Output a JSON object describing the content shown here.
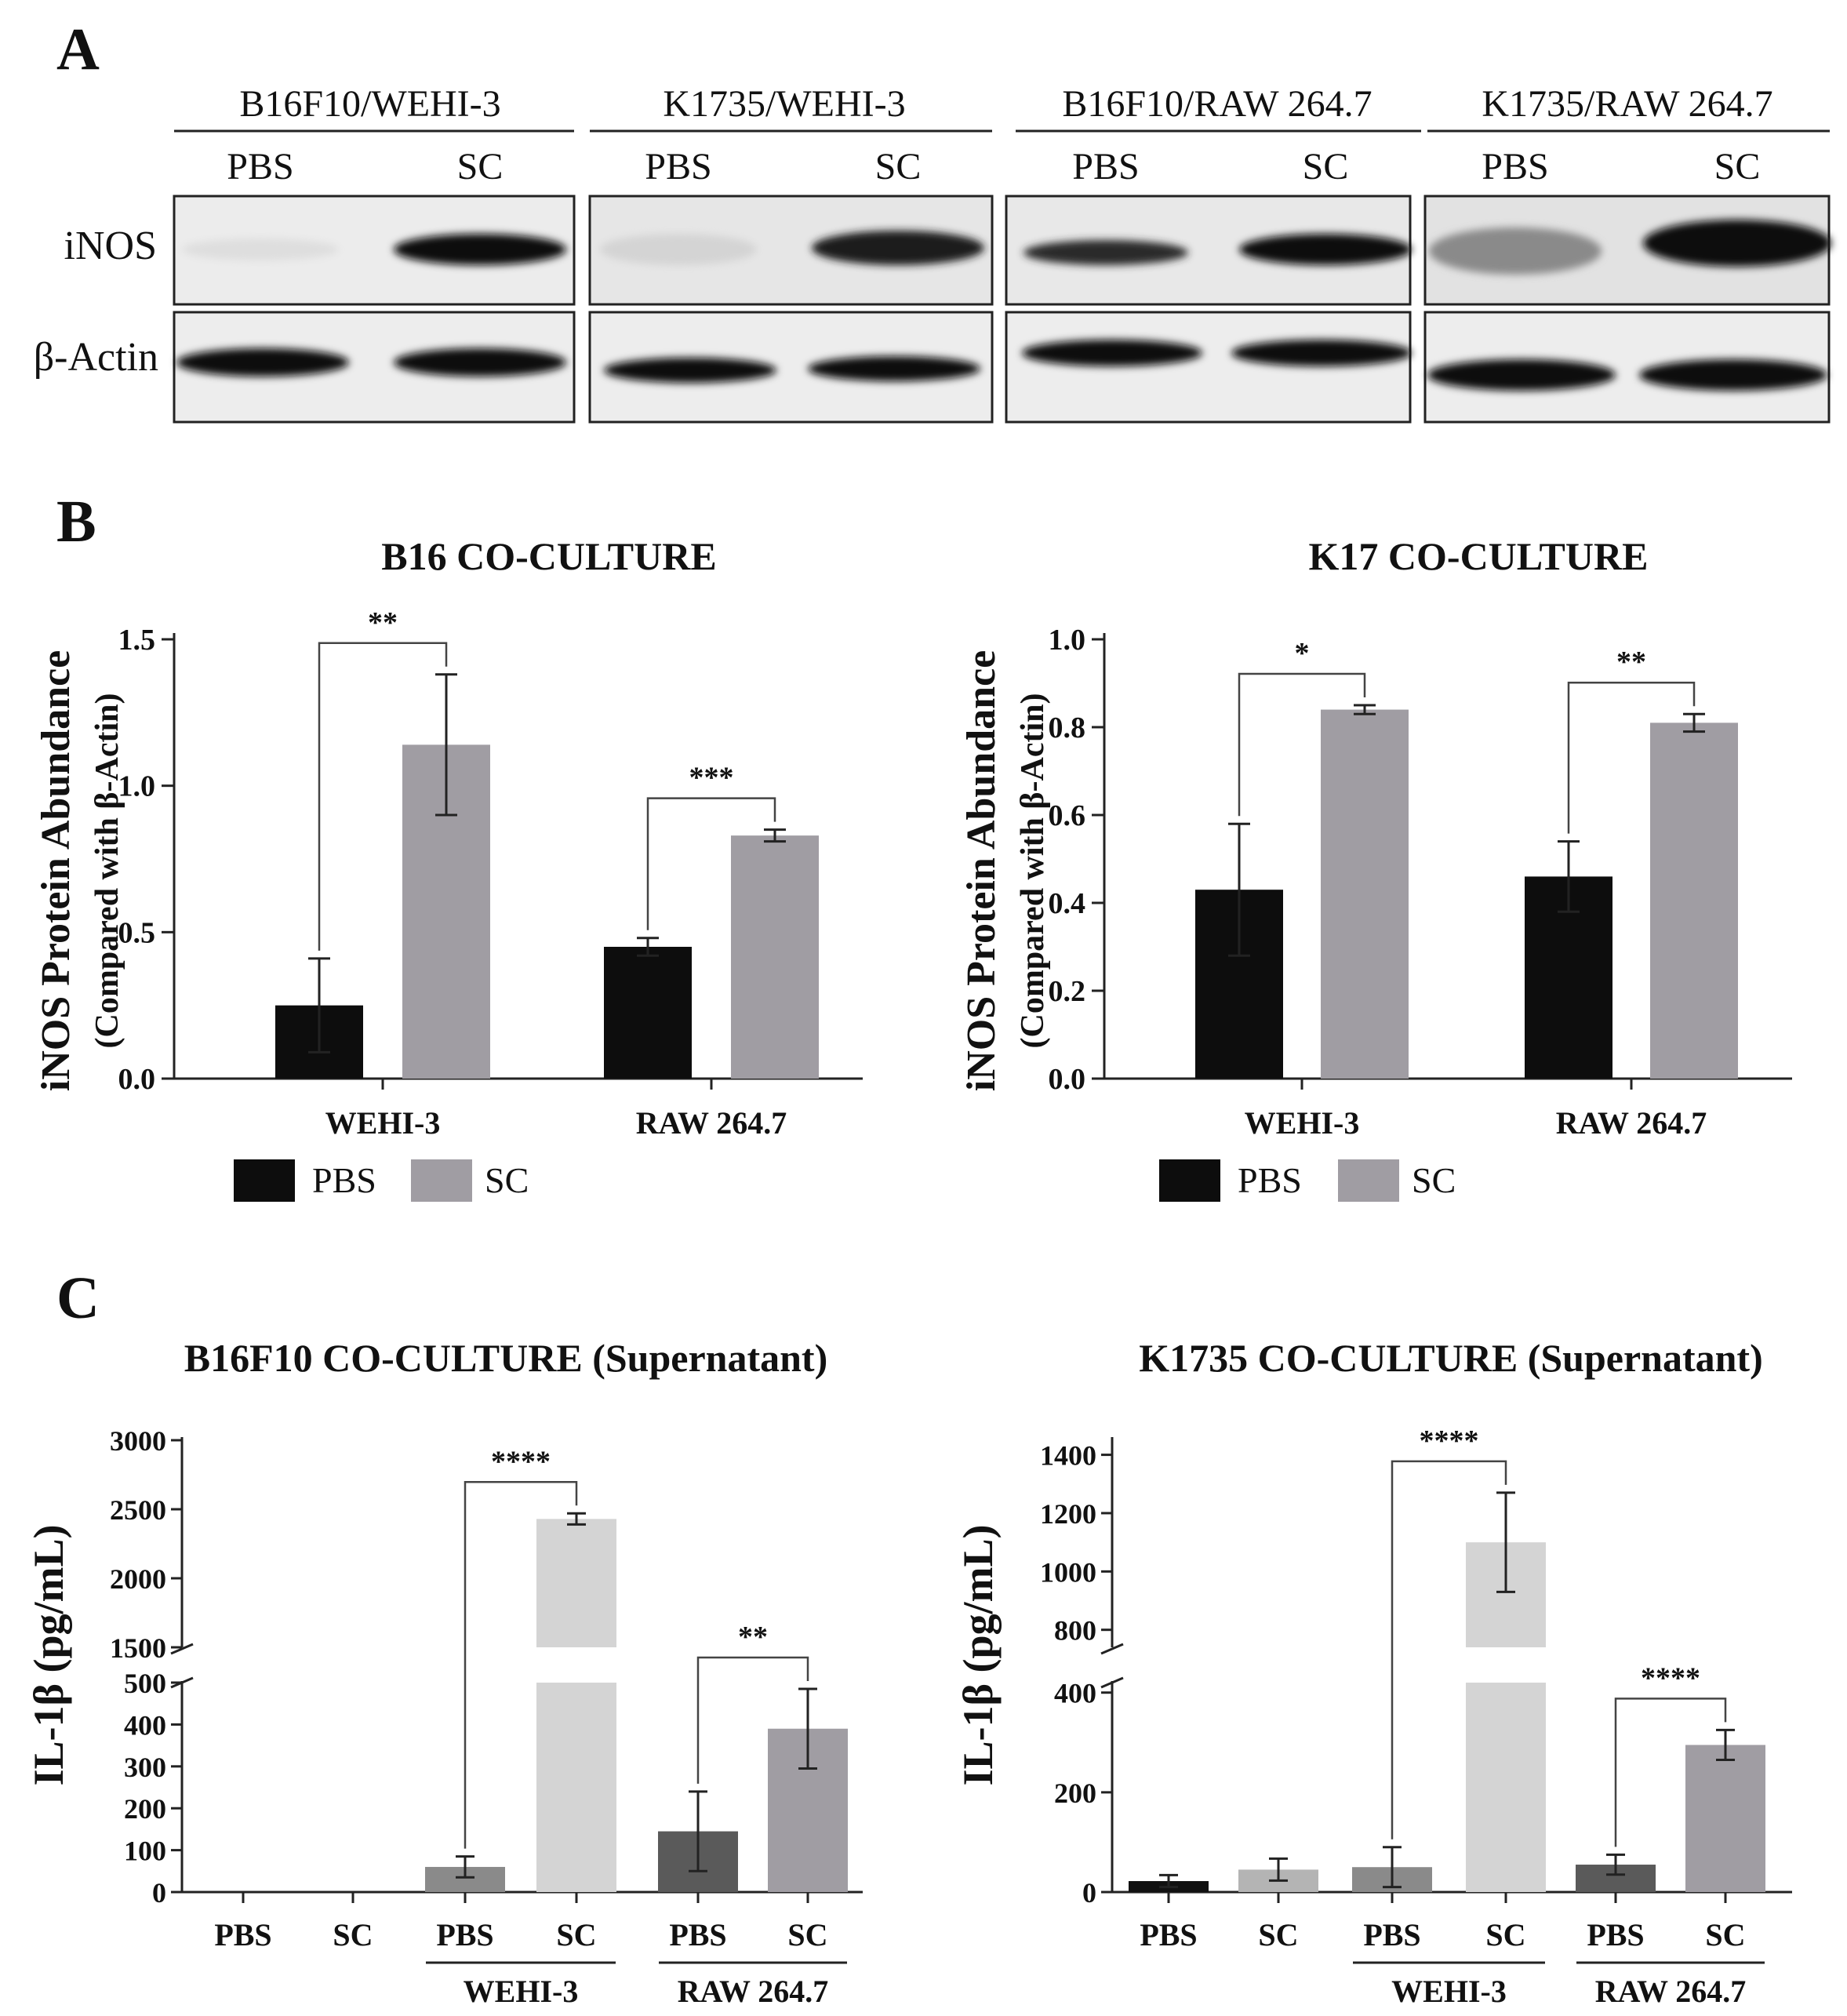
{
  "panel_letters": [
    "A",
    "B",
    "C"
  ],
  "blot": {
    "groups": [
      {
        "title": "B16F10/WEHI-3",
        "lanes": [
          "PBS",
          "SC"
        ]
      },
      {
        "title": "K1735/WEHI-3",
        "lanes": [
          "PBS",
          "SC"
        ]
      },
      {
        "title": "B16F10/RAW 264.7",
        "lanes": [
          "PBS",
          "SC"
        ]
      },
      {
        "title": "K1735/RAW 264.7",
        "lanes": [
          "PBS",
          "SC"
        ]
      }
    ],
    "row_labels": [
      "iNOS",
      "β-Actin"
    ],
    "band_intensity_note_colors": {
      "bg": "#e8e8e8",
      "band": "#111111"
    }
  },
  "colors": {
    "pbs": "#0d0d0d",
    "sc": "#a09da3",
    "c_pbs1": "#8a8a8a",
    "c_sc1": "#d4d4d4",
    "c_pbs2": "#5a5a5a",
    "c_sc2": "#a09da3",
    "c_b16pbs": "#111111",
    "c_b16sc": "#b4b4b4"
  },
  "chart_data": [
    {
      "type": "bar",
      "title": "B16 CO-CULTURE",
      "ylabel": "iNOS Protein Abundance",
      "ylabel2": "(Compared with β-Actin)",
      "categories": [
        "WEHI-3",
        "RAW 264.7"
      ],
      "series": [
        {
          "name": "PBS",
          "values": [
            0.25,
            0.45
          ],
          "errors": [
            0.16,
            0.03
          ]
        },
        {
          "name": "SC",
          "values": [
            1.14,
            0.83
          ],
          "errors": [
            0.24,
            0.02
          ]
        }
      ],
      "ylim": [
        0,
        1.5
      ],
      "yticks": [
        "0.0",
        "0.5",
        "1.0",
        "1.5"
      ],
      "ytick_values": [
        0,
        0.5,
        1.0,
        1.5
      ],
      "significance": [
        "**",
        "***"
      ],
      "legend": [
        "PBS",
        "SC"
      ]
    },
    {
      "type": "bar",
      "title": "K17 CO-CULTURE",
      "ylabel": "iNOS Protein Abundance",
      "ylabel2": "(Compared with β-Actin)",
      "categories": [
        "WEHI-3",
        "RAW 264.7"
      ],
      "series": [
        {
          "name": "PBS",
          "values": [
            0.43,
            0.46
          ],
          "errors": [
            0.15,
            0.08
          ]
        },
        {
          "name": "SC",
          "values": [
            0.84,
            0.81
          ],
          "errors": [
            0.01,
            0.02
          ]
        }
      ],
      "ylim": [
        0,
        1.0
      ],
      "yticks": [
        "0.0",
        "0.2",
        "0.4",
        "0.6",
        "0.8",
        "1.0"
      ],
      "ytick_values": [
        0,
        0.2,
        0.4,
        0.6,
        0.8,
        1.0
      ],
      "significance": [
        "*",
        "**"
      ],
      "legend": [
        "PBS",
        "SC"
      ]
    },
    {
      "type": "bar",
      "title": "B16F10 CO-CULTURE (Supernatant)",
      "ylabel": "IL-1β (pg/mL)",
      "categories": [
        "PBS",
        "SC",
        "PBS",
        "SC",
        "PBS",
        "SC"
      ],
      "group_labels": [
        "WEHI-3",
        "RAW 264.7"
      ],
      "values": [
        0,
        0,
        60,
        2430,
        145,
        390
      ],
      "errors": [
        0,
        0,
        25,
        40,
        95,
        95
      ],
      "broken_axis": {
        "lower": [
          0,
          500
        ],
        "upper": [
          1500,
          3000
        ]
      },
      "yticks_lower": [
        "0",
        "100",
        "200",
        "300",
        "400",
        "500"
      ],
      "ytick_values_lower": [
        0,
        100,
        200,
        300,
        400,
        500
      ],
      "yticks_upper": [
        "1500",
        "2000",
        "2500",
        "3000"
      ],
      "ytick_values_upper": [
        1500,
        2000,
        2500,
        3000
      ],
      "significance": [
        "****",
        "**"
      ]
    },
    {
      "type": "bar",
      "title": "K1735 CO-CULTURE (Supernatant)",
      "ylabel": "IL-1β (pg/mL)",
      "categories": [
        "PBS",
        "SC",
        "PBS",
        "SC",
        "PBS",
        "SC"
      ],
      "group_labels": [
        "WEHI-3",
        "RAW 264.7"
      ],
      "values": [
        22,
        45,
        50,
        1100,
        55,
        295
      ],
      "errors": [
        12,
        22,
        40,
        170,
        20,
        30
      ],
      "broken_axis": {
        "lower": [
          0,
          420
        ],
        "upper": [
          740,
          1450
        ]
      },
      "yticks_lower": [
        "0",
        "200",
        "400"
      ],
      "ytick_values_lower": [
        0,
        200,
        400
      ],
      "yticks_upper": [
        "800",
        "1000",
        "1200",
        "1400"
      ],
      "ytick_values_upper": [
        800,
        1000,
        1200,
        1400
      ],
      "significance": [
        "****",
        "****"
      ]
    }
  ]
}
